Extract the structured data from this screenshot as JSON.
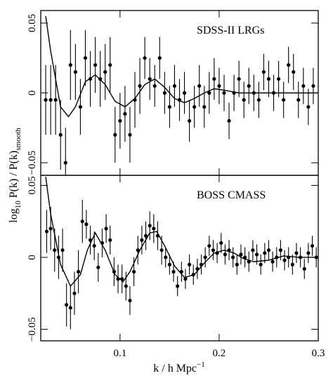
{
  "chart_data": [
    {
      "type": "errorbar",
      "annotation": "SDSS-II LRGs",
      "ylabel": [
        "log",
        "10",
        " P(k) / P(k)",
        "smooth"
      ],
      "xlim": [
        0.02,
        0.3
      ],
      "ylim": [
        -0.059,
        0.059
      ],
      "xticks": [
        0.1,
        0.2,
        0.3
      ],
      "xtick_labels": false,
      "yticks": [
        0.05,
        0,
        {
          "value": -0.05,
          "label": "−0.05"
        }
      ],
      "color": "#000000",
      "x": [
        0.025,
        0.03,
        0.035,
        0.04,
        0.045,
        0.05,
        0.055,
        0.06,
        0.065,
        0.07,
        0.075,
        0.08,
        0.085,
        0.09,
        0.095,
        0.1,
        0.105,
        0.11,
        0.115,
        0.12,
        0.125,
        0.13,
        0.135,
        0.14,
        0.145,
        0.15,
        0.155,
        0.16,
        0.165,
        0.17,
        0.175,
        0.18,
        0.185,
        0.19,
        0.195,
        0.2,
        0.205,
        0.21,
        0.215,
        0.22,
        0.225,
        0.23,
        0.235,
        0.24,
        0.245,
        0.25,
        0.255,
        0.26,
        0.265,
        0.27,
        0.275,
        0.28,
        0.285,
        0.29,
        0.295
      ],
      "values": [
        -0.005,
        -0.005,
        -0.005,
        -0.03,
        -0.05,
        0.02,
        0.015,
        -0.01,
        0.025,
        0.01,
        0.02,
        0.01,
        0.015,
        0.02,
        -0.03,
        -0.02,
        -0.015,
        -0.03,
        -0.005,
        0.005,
        0.025,
        0.01,
        0.005,
        0.025,
        0.0,
        -0.01,
        0.005,
        -0.005,
        0.0,
        -0.02,
        -0.01,
        0.005,
        -0.01,
        0.0,
        0.01,
        0.005,
        0.0,
        -0.02,
        0.0,
        0.01,
        -0.005,
        0.005,
        0.0,
        -0.005,
        0.015,
        0.01,
        0.0,
        0.01,
        -0.005,
        0.02,
        0.015,
        -0.005,
        0.005,
        -0.01,
        0.005
      ],
      "errors": [
        0.025,
        0.025,
        0.025,
        0.025,
        0.025,
        0.025,
        0.02,
        0.02,
        0.02,
        0.02,
        0.02,
        0.02,
        0.02,
        0.02,
        0.02,
        0.02,
        0.02,
        0.02,
        0.02,
        0.02,
        0.015,
        0.015,
        0.015,
        0.015,
        0.015,
        0.015,
        0.015,
        0.015,
        0.015,
        0.015,
        0.015,
        0.015,
        0.015,
        0.015,
        0.015,
        0.013,
        0.013,
        0.013,
        0.013,
        0.013,
        0.013,
        0.013,
        0.013,
        0.013,
        0.013,
        0.013,
        0.013,
        0.013,
        0.013,
        0.013,
        0.013,
        0.013,
        0.013,
        0.013,
        0.013
      ],
      "model": {
        "x": [
          0.025,
          0.03,
          0.04,
          0.048,
          0.055,
          0.065,
          0.075,
          0.085,
          0.095,
          0.105,
          0.115,
          0.125,
          0.135,
          0.145,
          0.155,
          0.165,
          0.175,
          0.185,
          0.195,
          0.205,
          0.22,
          0.24,
          0.26,
          0.28,
          0.3
        ],
        "values": [
          0.055,
          0.03,
          -0.01,
          -0.017,
          -0.01,
          0.008,
          0.013,
          0.006,
          -0.006,
          -0.01,
          -0.004,
          0.006,
          0.01,
          0.004,
          -0.004,
          -0.007,
          -0.004,
          0.0,
          0.003,
          0.002,
          0.0,
          0.0,
          0.0,
          0.0,
          0.0
        ]
      }
    },
    {
      "type": "errorbar",
      "annotation": "BOSS CMASS",
      "xlabel": [
        "k / h Mpc",
        "−1"
      ],
      "xlim": [
        0.02,
        0.3
      ],
      "ylim": [
        -0.058,
        0.057
      ],
      "xticks": [
        0.1,
        0.2,
        0.3
      ],
      "xtick_labels": true,
      "yticks": [
        0.05,
        0,
        {
          "value": -0.05,
          "label": "−0.05"
        }
      ],
      "color": "#000000",
      "x": [
        0.026,
        0.03,
        0.034,
        0.038,
        0.042,
        0.046,
        0.05,
        0.054,
        0.058,
        0.062,
        0.066,
        0.07,
        0.074,
        0.078,
        0.082,
        0.086,
        0.09,
        0.094,
        0.098,
        0.102,
        0.106,
        0.11,
        0.114,
        0.118,
        0.122,
        0.126,
        0.13,
        0.134,
        0.138,
        0.142,
        0.146,
        0.15,
        0.154,
        0.158,
        0.162,
        0.166,
        0.17,
        0.174,
        0.178,
        0.182,
        0.186,
        0.19,
        0.194,
        0.198,
        0.202,
        0.206,
        0.21,
        0.214,
        0.218,
        0.222,
        0.226,
        0.23,
        0.234,
        0.238,
        0.242,
        0.246,
        0.25,
        0.254,
        0.258,
        0.262,
        0.266,
        0.27,
        0.274,
        0.278,
        0.282,
        0.286,
        0.29,
        0.294,
        0.298
      ],
      "values": [
        0.018,
        0.02,
        0.005,
        0.0,
        0.005,
        -0.033,
        -0.035,
        -0.025,
        -0.01,
        0.025,
        0.023,
        0.012,
        0.008,
        -0.007,
        0.01,
        0.02,
        0.012,
        -0.01,
        -0.015,
        -0.015,
        -0.02,
        -0.03,
        -0.01,
        0.005,
        0.012,
        0.015,
        0.022,
        0.02,
        0.015,
        0.005,
        0.0,
        -0.005,
        -0.01,
        -0.02,
        -0.01,
        -0.015,
        -0.005,
        -0.012,
        -0.008,
        -0.005,
        0.0,
        0.008,
        0.005,
        0.003,
        0.01,
        0.002,
        0.005,
        0.0,
        -0.005,
        0.002,
        0.0,
        -0.003,
        0.005,
        0.002,
        -0.005,
        0.003,
        0.005,
        -0.003,
        0.0,
        0.005,
        -0.002,
        0.0,
        -0.005,
        0.003,
        0.0,
        -0.008,
        0.003,
        0.008,
        0.0
      ],
      "errors": [
        0.015,
        0.015,
        0.015,
        0.015,
        0.015,
        0.015,
        0.015,
        0.015,
        0.015,
        0.015,
        0.01,
        0.01,
        0.01,
        0.01,
        0.01,
        0.01,
        0.01,
        0.01,
        0.01,
        0.01,
        0.01,
        0.01,
        0.01,
        0.01,
        0.01,
        0.01,
        0.01,
        0.01,
        0.01,
        0.01,
        0.007,
        0.007,
        0.007,
        0.007,
        0.007,
        0.007,
        0.007,
        0.007,
        0.007,
        0.007,
        0.007,
        0.007,
        0.007,
        0.007,
        0.007,
        0.007,
        0.007,
        0.007,
        0.007,
        0.007,
        0.007,
        0.007,
        0.007,
        0.007,
        0.007,
        0.007,
        0.007,
        0.007,
        0.007,
        0.007,
        0.007,
        0.007,
        0.007,
        0.007,
        0.007,
        0.007,
        0.007,
        0.007,
        0.007
      ],
      "model": {
        "x": [
          0.025,
          0.03,
          0.04,
          0.05,
          0.06,
          0.067,
          0.075,
          0.085,
          0.095,
          0.103,
          0.11,
          0.12,
          0.13,
          0.137,
          0.145,
          0.155,
          0.165,
          0.175,
          0.185,
          0.195,
          0.205,
          0.215,
          0.225,
          0.235,
          0.25,
          0.265,
          0.28,
          0.3
        ],
        "values": [
          0.056,
          0.03,
          -0.005,
          -0.02,
          -0.012,
          0.005,
          0.017,
          0.005,
          -0.012,
          -0.017,
          -0.01,
          0.005,
          0.017,
          0.018,
          0.008,
          -0.006,
          -0.014,
          -0.012,
          -0.004,
          0.003,
          0.005,
          0.003,
          -0.001,
          -0.003,
          -0.002,
          0.001,
          0.0,
          0.0
        ]
      }
    }
  ]
}
